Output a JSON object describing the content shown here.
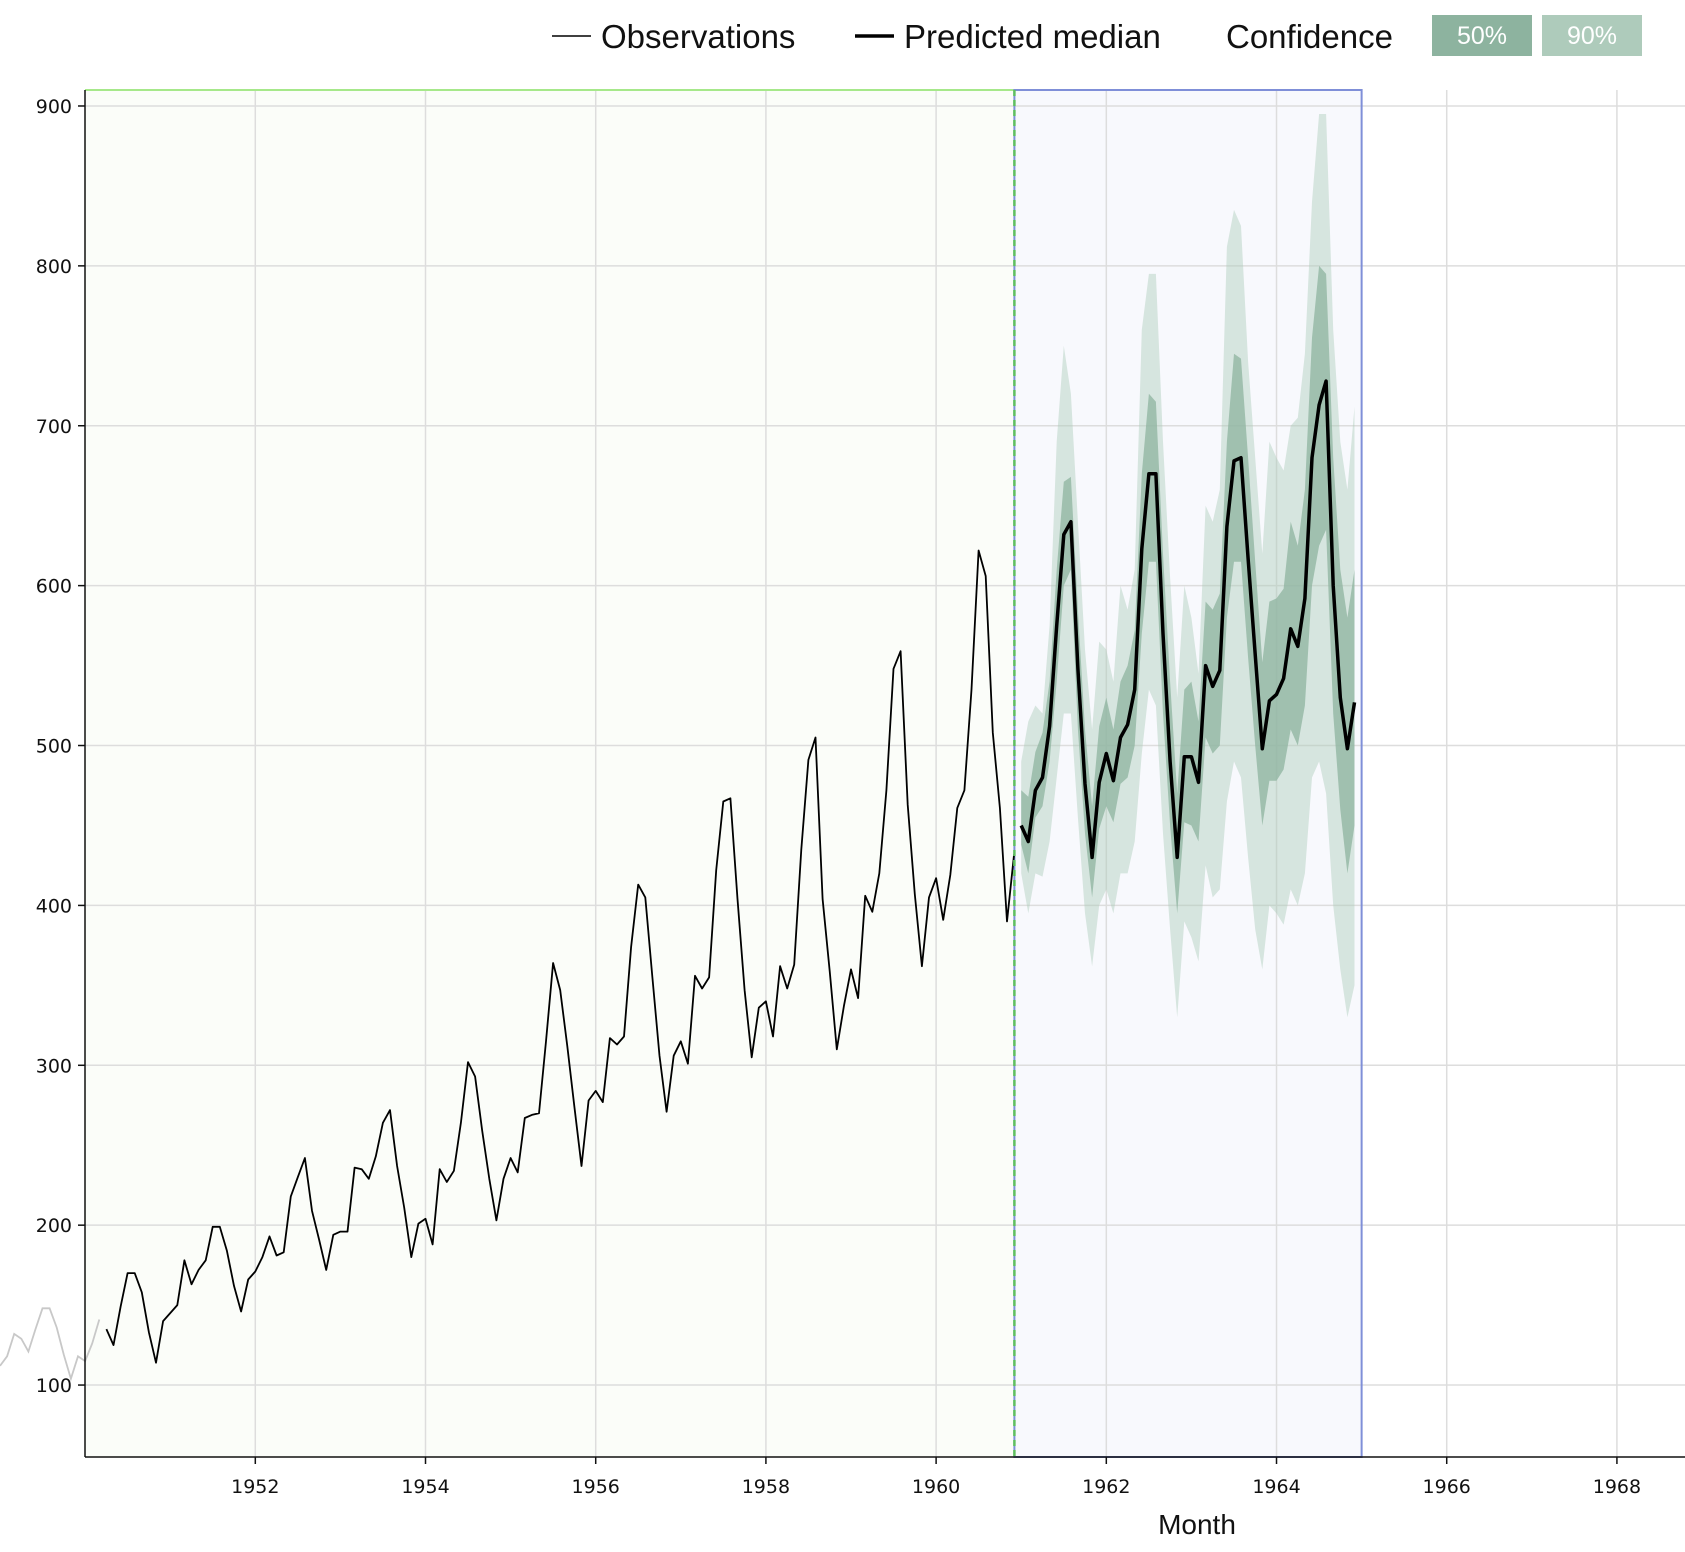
{
  "legend": {
    "observations_label": "Observations",
    "predicted_label": "Predicted median",
    "confidence_label": "Confidence",
    "badge_50": "50%",
    "badge_90": "90%"
  },
  "colors": {
    "observation_line": "#000000",
    "context_line": "#c8c8c8",
    "median_line": "#000000",
    "band_50": "#8db39f",
    "band_90": "#aecbbb",
    "history_region": "#fbfdf9",
    "history_border": "#a6e88a",
    "forecast_region": "#f8f9fd",
    "forecast_border": "#7f8fd8",
    "cutoff_line": "#5fbf5f"
  },
  "chart_data": {
    "type": "line",
    "xlabel": "Month",
    "ylabel": "",
    "x_tick_labels": [
      "1952",
      "1954",
      "1956",
      "1958",
      "1960",
      "1962",
      "1964",
      "1966",
      "1968"
    ],
    "y_tick_labels": [
      "100",
      "200",
      "300",
      "400",
      "500",
      "600",
      "700",
      "800",
      "900"
    ],
    "x_ticks": [
      1952,
      1954,
      1956,
      1958,
      1960,
      1962,
      1964,
      1966,
      1968
    ],
    "y_ticks": [
      100,
      200,
      300,
      400,
      500,
      600,
      700,
      800,
      900
    ],
    "xlim": [
      1949.0,
      1968.8
    ],
    "ylim": [
      55,
      910
    ],
    "grid": true,
    "legend_position": "top-right",
    "history_region": [
      1950.17,
      1960.92
    ],
    "forecast_region": [
      1960.92,
      1965.0
    ],
    "series": [
      {
        "name": "Observations",
        "x_start": 1949.0,
        "step": 0.08333,
        "context_end": 1950.17,
        "values": [
          112,
          118,
          132,
          129,
          121,
          135,
          148,
          148,
          136,
          119,
          104,
          118,
          115,
          126,
          141,
          135,
          125,
          149,
          170,
          170,
          158,
          133,
          114,
          140,
          145,
          150,
          178,
          163,
          172,
          178,
          199,
          199,
          184,
          162,
          146,
          166,
          171,
          180,
          193,
          181,
          183,
          218,
          230,
          242,
          209,
          191,
          172,
          194,
          196,
          196,
          236,
          235,
          229,
          243,
          264,
          272,
          237,
          211,
          180,
          201,
          204,
          188,
          235,
          227,
          234,
          264,
          302,
          293,
          259,
          229,
          203,
          229,
          242,
          233,
          267,
          269,
          270,
          315,
          364,
          347,
          312,
          274,
          237,
          278,
          284,
          277,
          317,
          313,
          318,
          374,
          413,
          405,
          355,
          306,
          271,
          306,
          315,
          301,
          356,
          348,
          355,
          422,
          465,
          467,
          404,
          347,
          305,
          336,
          340,
          318,
          362,
          348,
          363,
          435,
          491,
          505,
          404,
          359,
          310,
          337,
          360,
          342,
          406,
          396,
          420,
          472,
          548,
          559,
          463,
          407,
          362,
          405,
          417,
          391,
          419,
          461,
          472,
          535,
          622,
          606,
          508,
          461,
          390,
          432
        ]
      },
      {
        "name": "Predicted median",
        "x_start": 1961.0,
        "step": 0.08333,
        "values": [
          450,
          440,
          472,
          480,
          512,
          575,
          632,
          640,
          548,
          476,
          430,
          477,
          495,
          478,
          505,
          513,
          535,
          623,
          670,
          670,
          570,
          490,
          430,
          493,
          493,
          477,
          550,
          537,
          547,
          637,
          678,
          680,
          617,
          557,
          498,
          528,
          532,
          542,
          573,
          562,
          592,
          680,
          713,
          728,
          600,
          530,
          498,
          527
        ]
      },
      {
        "name": "50% confidence",
        "x_start": 1961.0,
        "step": 0.08333,
        "lower": [
          438,
          420,
          455,
          462,
          490,
          540,
          600,
          610,
          510,
          445,
          405,
          448,
          462,
          452,
          476,
          480,
          500,
          570,
          615,
          615,
          520,
          450,
          395,
          452,
          450,
          440,
          505,
          495,
          500,
          580,
          615,
          615,
          555,
          500,
          450,
          478,
          478,
          485,
          510,
          500,
          525,
          600,
          625,
          635,
          520,
          460,
          420,
          450
        ],
        "upper": [
          472,
          468,
          496,
          508,
          540,
          610,
          665,
          668,
          585,
          510,
          462,
          512,
          530,
          510,
          540,
          550,
          572,
          670,
          720,
          715,
          620,
          540,
          470,
          535,
          540,
          515,
          590,
          585,
          595,
          690,
          745,
          742,
          680,
          615,
          552,
          590,
          592,
          598,
          640,
          625,
          660,
          755,
          800,
          795,
          680,
          610,
          580,
          610
        ]
      },
      {
        "name": "90% confidence",
        "x_start": 1961.0,
        "step": 0.08333,
        "lower": [
          420,
          395,
          420,
          418,
          440,
          480,
          520,
          520,
          455,
          395,
          362,
          400,
          410,
          395,
          420,
          420,
          440,
          495,
          535,
          525,
          445,
          385,
          330,
          390,
          380,
          365,
          425,
          405,
          410,
          465,
          490,
          480,
          430,
          385,
          360,
          400,
          395,
          388,
          410,
          400,
          420,
          480,
          490,
          470,
          400,
          360,
          330,
          350
        ],
        "upper": [
          490,
          515,
          525,
          520,
          575,
          690,
          750,
          720,
          640,
          560,
          510,
          565,
          560,
          540,
          600,
          585,
          610,
          760,
          795,
          795,
          690,
          605,
          530,
          600,
          580,
          545,
          650,
          640,
          660,
          812,
          835,
          825,
          740,
          680,
          620,
          690,
          680,
          672,
          700,
          705,
          745,
          840,
          895,
          895,
          760,
          690,
          660,
          712
        ]
      }
    ]
  }
}
